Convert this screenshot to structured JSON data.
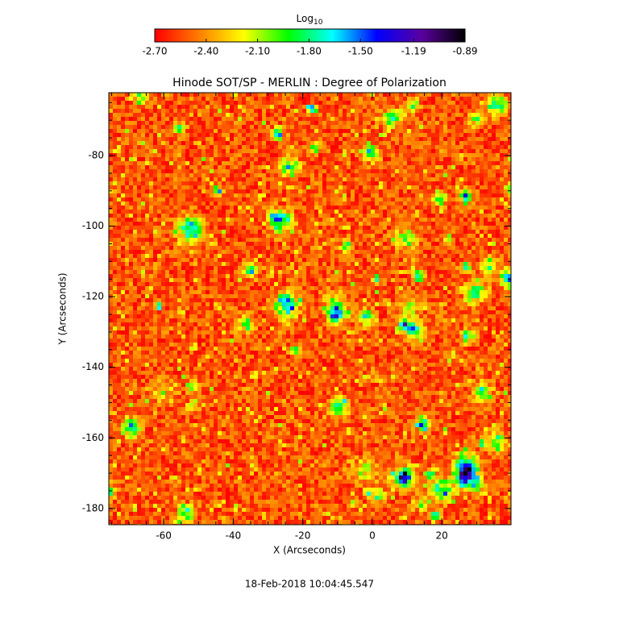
{
  "chart_data": {
    "type": "heatmap",
    "title": "Hinode SOT/SP - MERLIN : Degree of Polarization",
    "x_label": "X (Arcseconds)",
    "y_label": "Y (Arcseconds)",
    "xlim": [
      -75.8,
      39.9
    ],
    "xticks": [
      -60,
      -40,
      -20,
      0,
      20
    ],
    "ylim": [
      -184.6,
      -62.2
    ],
    "yticks": [
      -180,
      -160,
      -140,
      -120,
      -100,
      -80
    ],
    "colorbar": {
      "label": "Log",
      "label_subscript": "10",
      "lim": [
        -2.7,
        -0.89
      ],
      "ticks": [
        {
          "value": -2.7,
          "label": "-2.70"
        },
        {
          "value": -2.4,
          "label": "-2.40"
        },
        {
          "value": -2.1,
          "label": "-2.10"
        },
        {
          "value": -1.8,
          "label": "-1.80"
        },
        {
          "value": -1.5,
          "label": "-1.50"
        },
        -1.19,
        -0.89
      ],
      "colormap": [
        "#ff0000",
        "#ff7f00",
        "#ffff00",
        "#00ff00",
        "#00ffff",
        "#0000ff",
        "#5a00a0",
        "#000000"
      ]
    },
    "timestamp": "18-Feb-2018 10:04:45.547"
  }
}
